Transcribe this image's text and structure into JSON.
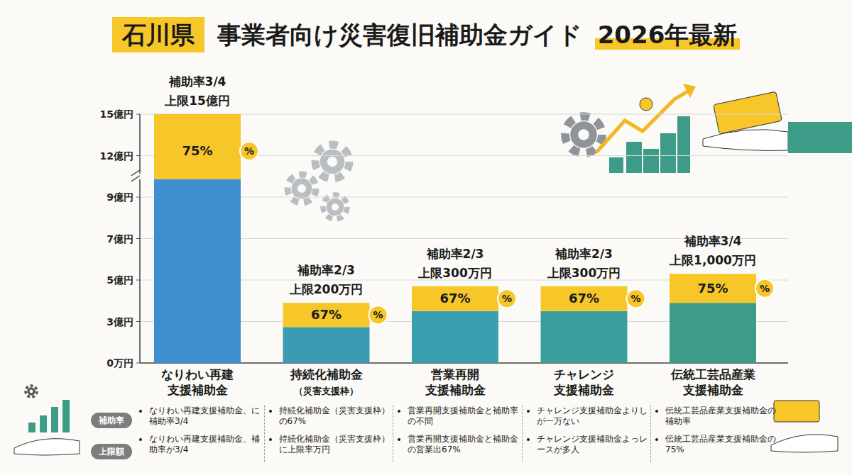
{
  "chart_data": {
    "type": "bar",
    "title_tag": "石川県",
    "title": "事業者向け災害復旧補助金ガイド",
    "subtitle": "2026年最新",
    "stacked": true,
    "grid": true,
    "categories": [
      "なりわい再建\n支援補助金",
      "持続化補助金\n（災害支援枠）",
      "営業再開\n支援補助金",
      "チャレンジ\n支援補助金",
      "伝統工芸品産業\n支援補助金"
    ],
    "series": [
      {
        "values": [
          10.3,
          2.6,
          3.5,
          3.5,
          3.9
        ],
        "colors": [
          "#3d8fcf",
          "#3b9bb3",
          "#3a9fae",
          "#3a9f9c",
          "#3d9c88"
        ]
      },
      {
        "values": [
          4.7,
          1.3,
          1.2,
          1.2,
          1.4
        ],
        "color": "#f7c72a"
      }
    ],
    "ylim": [
      0,
      15
    ],
    "yticks": [
      {
        "value": 0,
        "label": "0万円"
      },
      {
        "value": 3,
        "label": "3億円"
      },
      {
        "value": 5,
        "label": "5億円"
      },
      {
        "value": 7,
        "label": "7億円"
      },
      {
        "value": 9,
        "label": "9億円"
      },
      {
        "value": 12,
        "label": "12億円"
      },
      {
        "value": 15,
        "label": "15億円"
      }
    ],
    "axis_break": [
      9,
      12
    ],
    "annotations": [
      {
        "rate": "補助率3/4",
        "limit": "上限15億円",
        "percent": "75%"
      },
      {
        "rate": "補助率2/3",
        "limit": "上限200万円",
        "percent": "67%"
      },
      {
        "rate": "補助率2/3",
        "limit": "上限300万円",
        "percent": "67%"
      },
      {
        "rate": "補助率2/3",
        "limit": "上限300万円",
        "percent": "67%"
      },
      {
        "rate": "補助率3/4",
        "limit": "上限1,000万円",
        "percent": "75%"
      }
    ],
    "badge": "%",
    "notes": {
      "row_labels": [
        "補助率",
        "上限額"
      ],
      "columns": [
        [
          "なりわい再建支援補助金、に補助率3/4",
          "なりわい再建支援補助金、補助率が3/4"
        ],
        [
          "持続化補助金（災害支援枠）の67%",
          "持続化補助金（災害支援枠）に上限率万円"
        ],
        [
          "営業再開支援補助金と補助率の不間",
          "営業再開支援補助金と補助金の営業出67%"
        ],
        [
          "チャレンジ支援補助金よりしが一万ない",
          "チャレンジ支援補助金よっレースが多人"
        ],
        [
          "伝統工芸品産業支援補助金の補助率",
          "伝統工芸品産業支援補助金の75%"
        ]
      ]
    }
  }
}
